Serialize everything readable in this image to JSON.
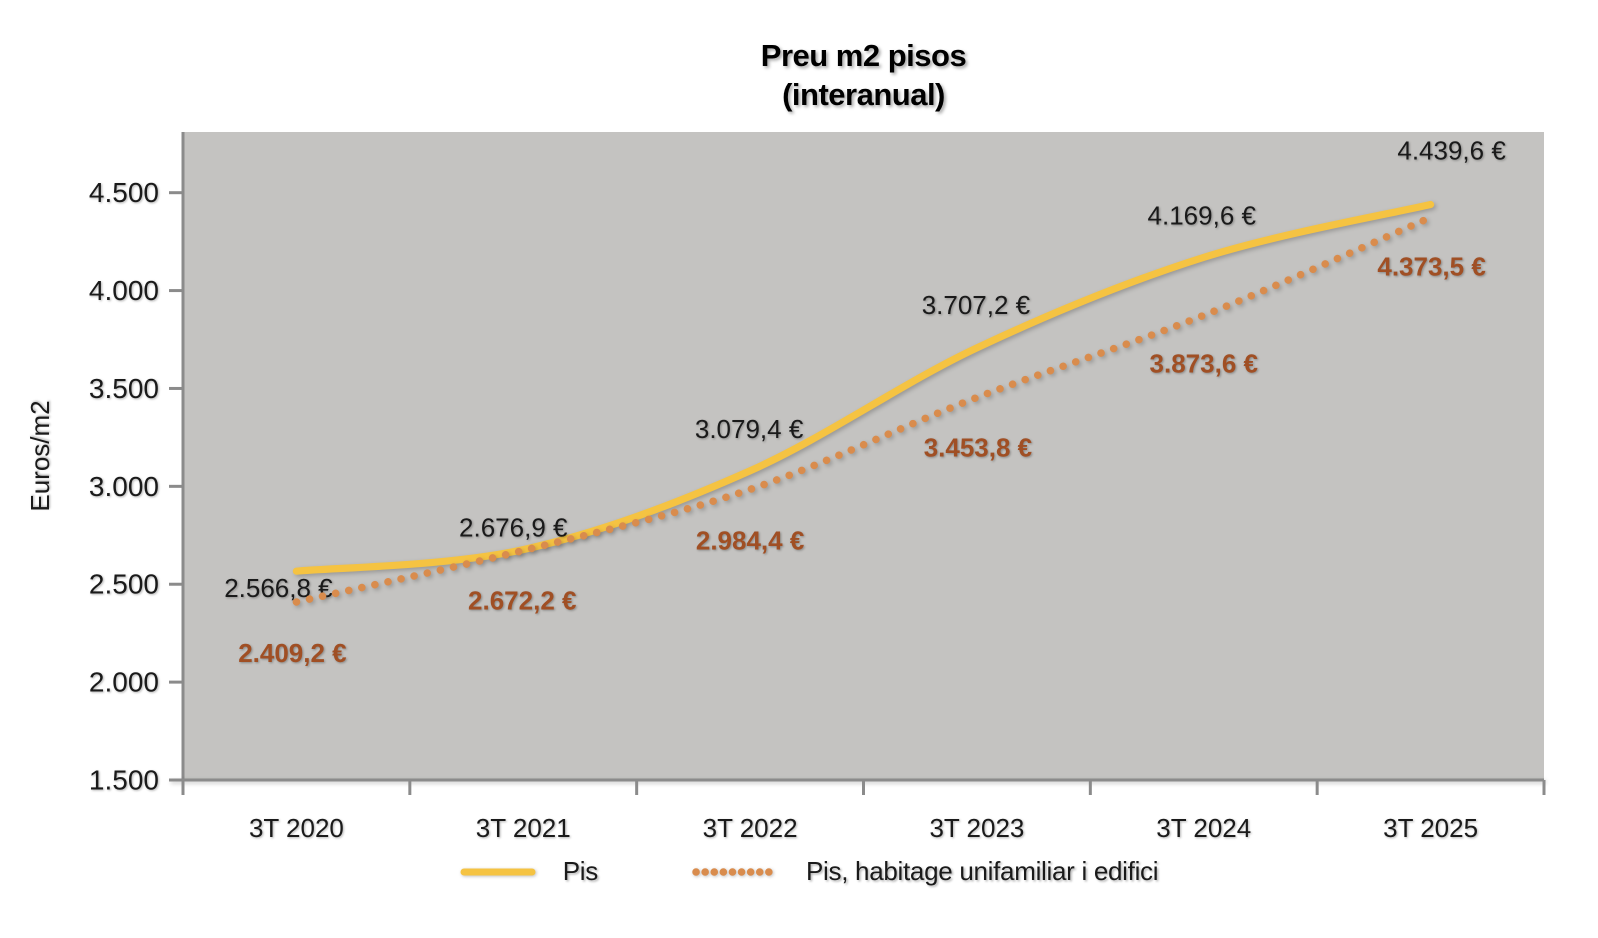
{
  "chart_data": {
    "type": "line",
    "title": "Preu m2 pisos",
    "subtitle": "(interanual)",
    "ylabel": "Euros/m2",
    "xlabel": "",
    "categories": [
      "3T 2020",
      "3T 2021",
      "3T 2022",
      "3T 2023",
      "3T 2024",
      "3T 2025"
    ],
    "series": [
      {
        "name": "Pis",
        "style": "solid",
        "color": "#F5C342",
        "label_color": "#1A1A1A",
        "label_bold": false,
        "values": [
          2566.8,
          2676.9,
          3079.4,
          3707.2,
          4169.6,
          4439.6
        ],
        "labels": [
          "2.566,8 €",
          "2.676,9 €",
          "3.079,4 €",
          "3.707,2 €",
          "4.169,6 €",
          "4.439,6 €"
        ]
      },
      {
        "name": "Pis, habitage unifamiliar i edifici",
        "style": "dotted",
        "color": "#D98C4D",
        "label_color": "#A04F24",
        "label_bold": true,
        "values": [
          2409.2,
          2672.2,
          2984.4,
          3453.8,
          3873.6,
          4373.5
        ],
        "labels": [
          "2.409,2 €",
          "2.672,2 €",
          "2.984,4 €",
          "3.453,8 €",
          "3.873,6 €",
          "4.373,5 €"
        ]
      }
    ],
    "ylim": [
      1500,
      4810
    ],
    "y_ticks": {
      "values": [
        1500,
        2000,
        2500,
        3000,
        3500,
        4000,
        4500
      ],
      "labels": [
        "1.500",
        "2.000",
        "2.500",
        "3.000",
        "3.500",
        "4.000",
        "4.500"
      ]
    },
    "grid": false,
    "smooth": true,
    "legend_position": "bottom",
    "plot_background": "#C4C3C1",
    "axis_color": "#8B8B8B",
    "tick_label_color": "#1A1A1A"
  }
}
